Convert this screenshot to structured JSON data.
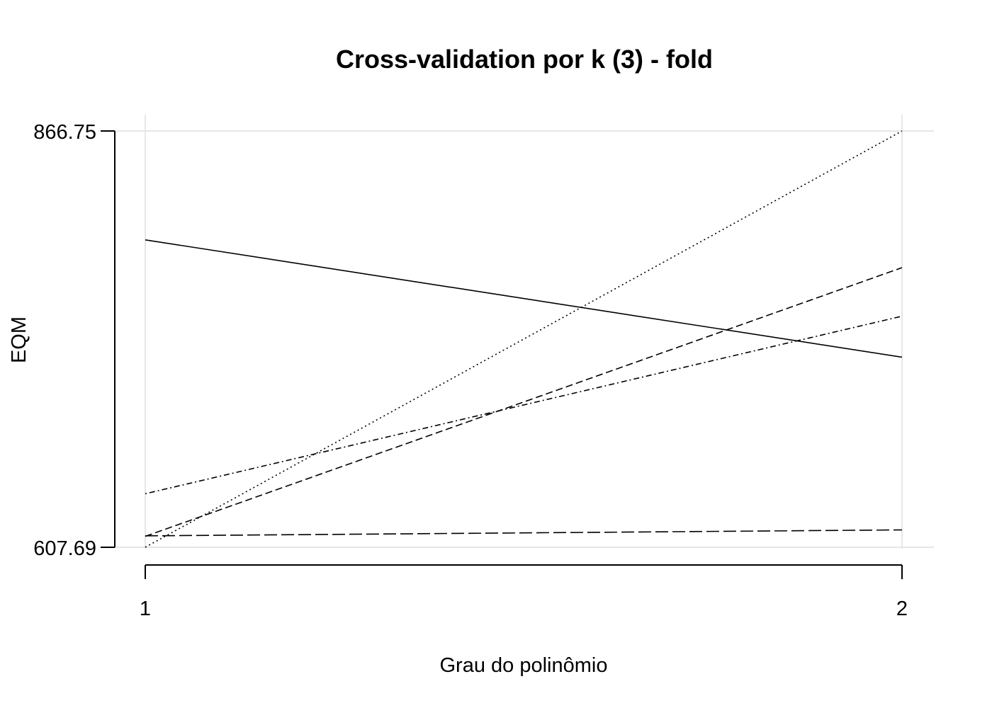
{
  "chart_data": {
    "type": "line",
    "title": "Cross-validation por k (3) - fold",
    "xlabel": "Grau do polinômio",
    "ylabel": "EQM",
    "x": [
      1,
      2
    ],
    "x_tick_labels": [
      "1",
      "2"
    ],
    "y_tick_labels": [
      "866.75",
      "607.69"
    ],
    "y_ticks": [
      866.75,
      607.69
    ],
    "xlim": [
      1,
      2
    ],
    "ylim": [
      607.69,
      866.75
    ],
    "grid": true,
    "legend": "none",
    "series": [
      {
        "values": [
          799.0,
          726.0
        ],
        "line_style": "solid"
      },
      {
        "values": [
          614.5,
          781.7
        ],
        "line_style": "dashed"
      },
      {
        "values": [
          607.7,
          866.75
        ],
        "line_style": "dotted"
      },
      {
        "values": [
          641.0,
          751.5
        ],
        "line_style": "dotdash"
      },
      {
        "values": [
          614.8,
          618.5
        ],
        "line_style": "longdash"
      }
    ]
  }
}
